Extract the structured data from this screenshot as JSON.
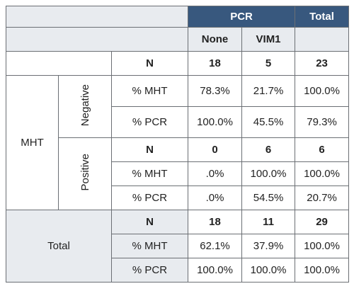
{
  "table": {
    "header_group": "PCR",
    "header_total": "Total",
    "subheaders": [
      "None",
      "VIM1"
    ],
    "overall": {
      "label": "N",
      "values": [
        "18",
        "5",
        "23"
      ]
    },
    "row_group": "MHT",
    "sections": [
      {
        "label": "Negative",
        "rows": [
          {
            "label": "% MHT",
            "values": [
              "78.3%",
              "21.7%",
              "100.0%"
            ]
          },
          {
            "label": "% PCR",
            "values": [
              "100.0%",
              "45.5%",
              "79.3%"
            ]
          }
        ]
      },
      {
        "label": "Positive",
        "rows": [
          {
            "label": "N",
            "values": [
              "0",
              "6",
              "6"
            ]
          },
          {
            "label": "% MHT",
            "values": [
              ".0%",
              "100.0%",
              "100.0%"
            ]
          },
          {
            "label": "% PCR",
            "values": [
              ".0%",
              "54.5%",
              "20.7%"
            ]
          }
        ]
      }
    ],
    "total": {
      "label": "Total",
      "rows": [
        {
          "label": "N",
          "values": [
            "18",
            "11",
            "29"
          ]
        },
        {
          "label": "% MHT",
          "values": [
            "62.1%",
            "37.9%",
            "100.0%"
          ]
        },
        {
          "label": "% PCR",
          "values": [
            "100.0%",
            "100.0%",
            "100.0%"
          ]
        }
      ]
    }
  }
}
